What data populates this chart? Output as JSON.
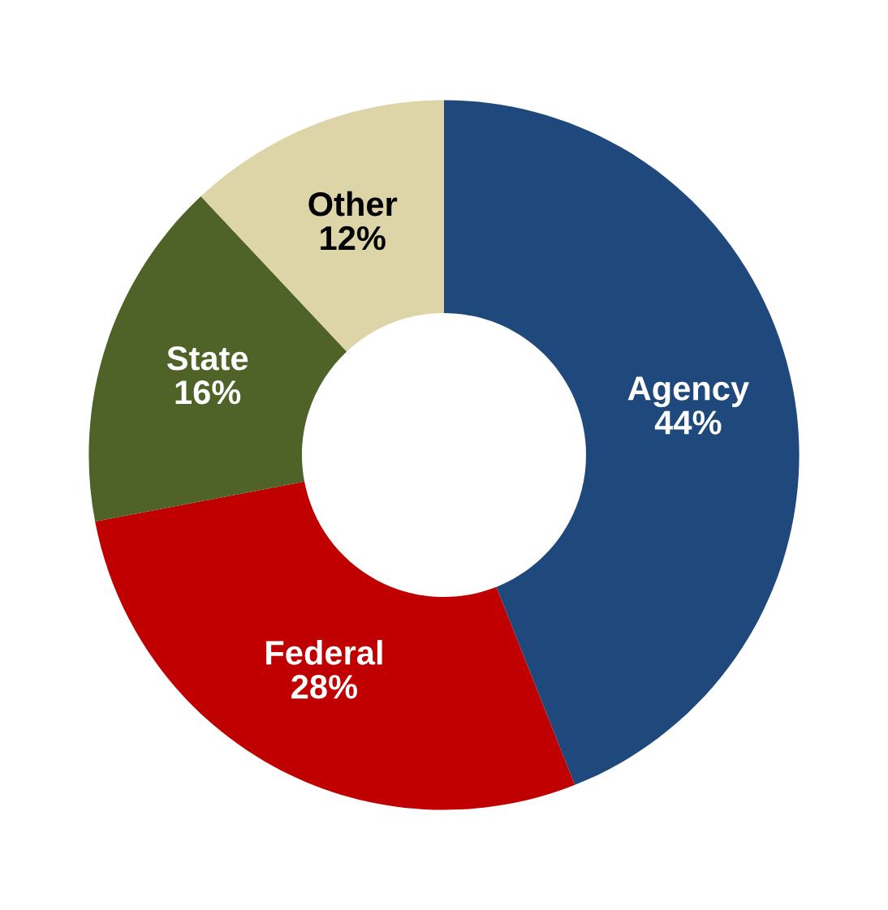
{
  "chart_data": {
    "type": "donut",
    "categories": [
      "Agency",
      "Federal",
      "State",
      "Other"
    ],
    "values": [
      44,
      28,
      16,
      12
    ],
    "value_labels": [
      "44%",
      "28%",
      "16%",
      "12%"
    ],
    "colors": [
      "#1f497d",
      "#c00000",
      "#4f6228",
      "#ddd4a8"
    ],
    "legend": false
  }
}
